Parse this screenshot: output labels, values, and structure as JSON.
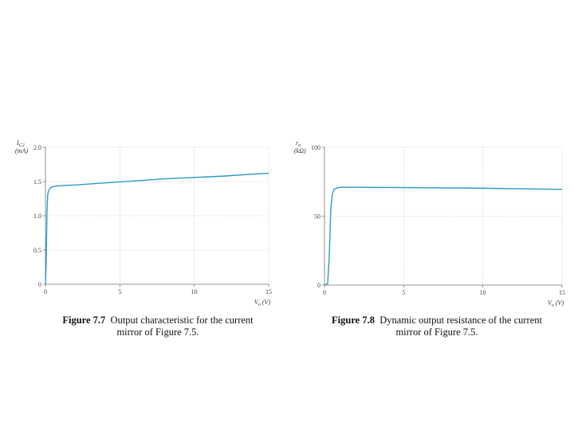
{
  "chart_data": [
    {
      "type": "line",
      "ylabel_line1": "I",
      "ylabel_sub": "C2",
      "ylabel_line2": "(mA)",
      "xlabel": "V",
      "xlabel_sub": "o",
      "xlabel_unit": "(V)",
      "xlim": [
        0,
        15
      ],
      "ylim": [
        0,
        2.0
      ],
      "xticks": [
        "0",
        "5",
        "10",
        "15"
      ],
      "yticks": [
        "0",
        "0.5",
        "1.0",
        "1.5",
        "2.0"
      ],
      "grid": true,
      "series": [
        {
          "color": "#2a9ac8",
          "x": [
            0,
            0.05,
            0.1,
            0.15,
            0.2,
            0.3,
            0.4,
            0.6,
            0.8,
            1.0,
            2,
            4,
            6,
            8,
            10,
            12,
            14,
            15
          ],
          "y": [
            0,
            0.3,
            1.05,
            1.3,
            1.36,
            1.4,
            1.42,
            1.43,
            1.435,
            1.44,
            1.45,
            1.48,
            1.51,
            1.54,
            1.56,
            1.58,
            1.61,
            1.62
          ]
        }
      ],
      "caption_label": "Figure 7.7",
      "caption_text": "Output characteristic for the current mirror of Figure 7.5."
    },
    {
      "type": "line",
      "ylabel_line1": "r",
      "ylabel_sub": "o",
      "ylabel_line2": "(kΩ)",
      "xlabel": "V",
      "xlabel_sub": "o",
      "xlabel_unit": "(V)",
      "xlim": [
        0,
        15
      ],
      "ylim": [
        0,
        100
      ],
      "xticks": [
        "0",
        "5",
        "10",
        "15"
      ],
      "yticks": [
        "0",
        "50",
        "100"
      ],
      "grid": true,
      "series": [
        {
          "color": "#2a9ac8",
          "x": [
            0,
            0.2,
            0.3,
            0.4,
            0.5,
            0.6,
            0.8,
            1.0,
            2,
            5,
            10,
            15
          ],
          "y": [
            0,
            1,
            20,
            55,
            66,
            69.5,
            70.5,
            71,
            71,
            70.8,
            70.3,
            69.5
          ]
        }
      ],
      "caption_label": "Figure 7.8",
      "caption_text": "Dynamic output resistance of the current mirror of Figure 7.5."
    }
  ]
}
